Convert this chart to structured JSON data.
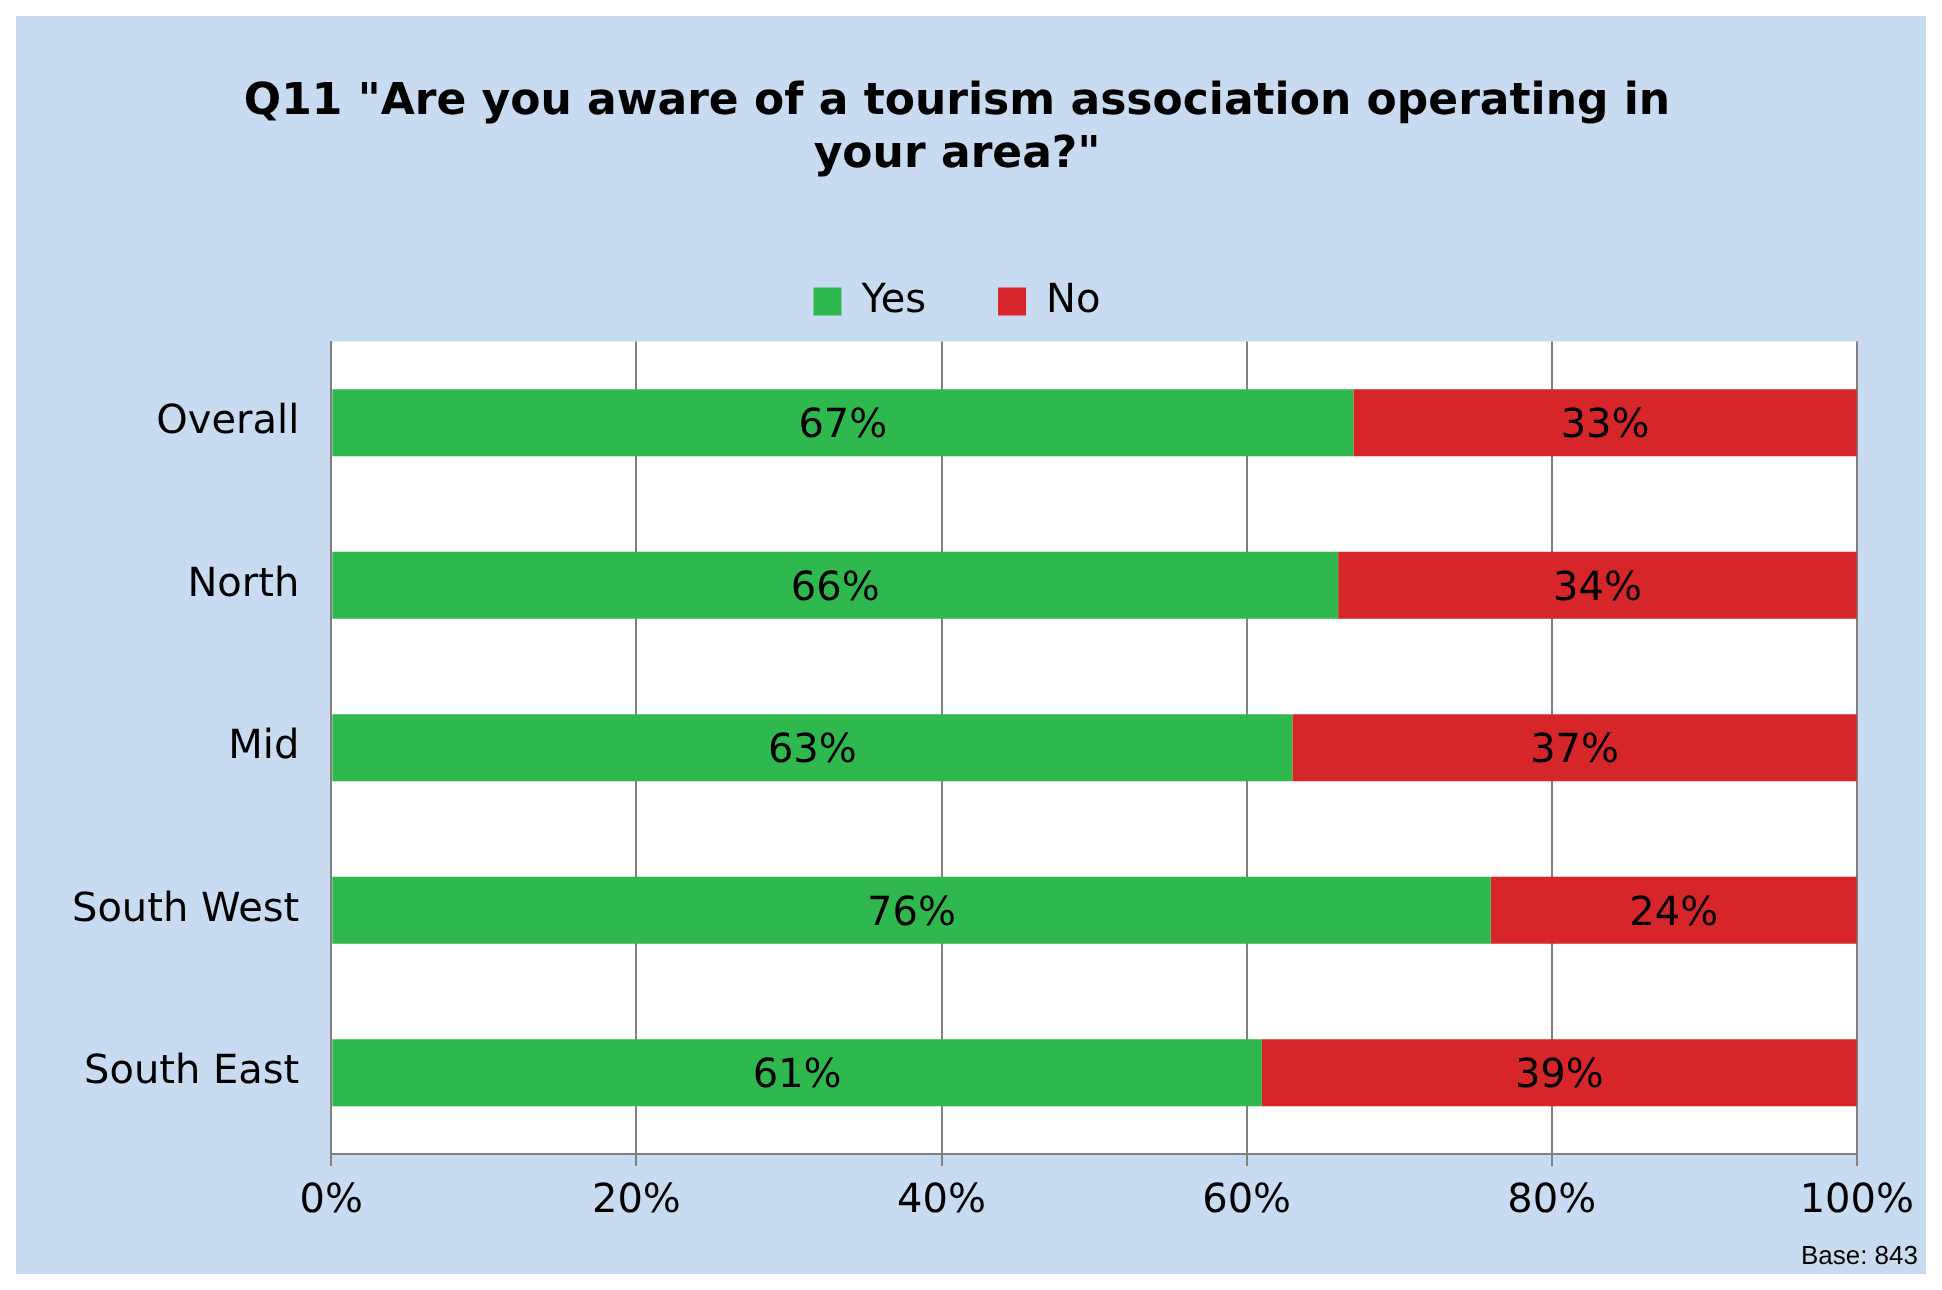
{
  "chart_data": {
    "type": "bar",
    "orientation": "horizontal",
    "stacked": true,
    "title": "Q11 \"Are you aware of a tourism association operating in your area?\"",
    "categories": [
      "Overall",
      "North",
      "Mid",
      "South West",
      "South East"
    ],
    "series": [
      {
        "name": "Yes",
        "color": "#2fb84e",
        "values": [
          67,
          66,
          63,
          76,
          61
        ],
        "value_labels": [
          "67%",
          "66%",
          "63%",
          "76%",
          "61%"
        ]
      },
      {
        "name": "No",
        "color": "#d7262a",
        "values": [
          33,
          34,
          37,
          24,
          39
        ],
        "value_labels": [
          "33%",
          "34%",
          "37%",
          "24%",
          "39%"
        ]
      }
    ],
    "xlim": [
      0,
      100
    ],
    "xticks": [
      {
        "value": 0,
        "label": "0%"
      },
      {
        "value": 20,
        "label": "20%"
      },
      {
        "value": 40,
        "label": "40%"
      },
      {
        "value": 60,
        "label": "60%"
      },
      {
        "value": 80,
        "label": "80%"
      },
      {
        "value": 100,
        "label": "100%"
      }
    ],
    "grid": "x",
    "legend": "top",
    "annotations": [
      "Base: 843"
    ]
  }
}
